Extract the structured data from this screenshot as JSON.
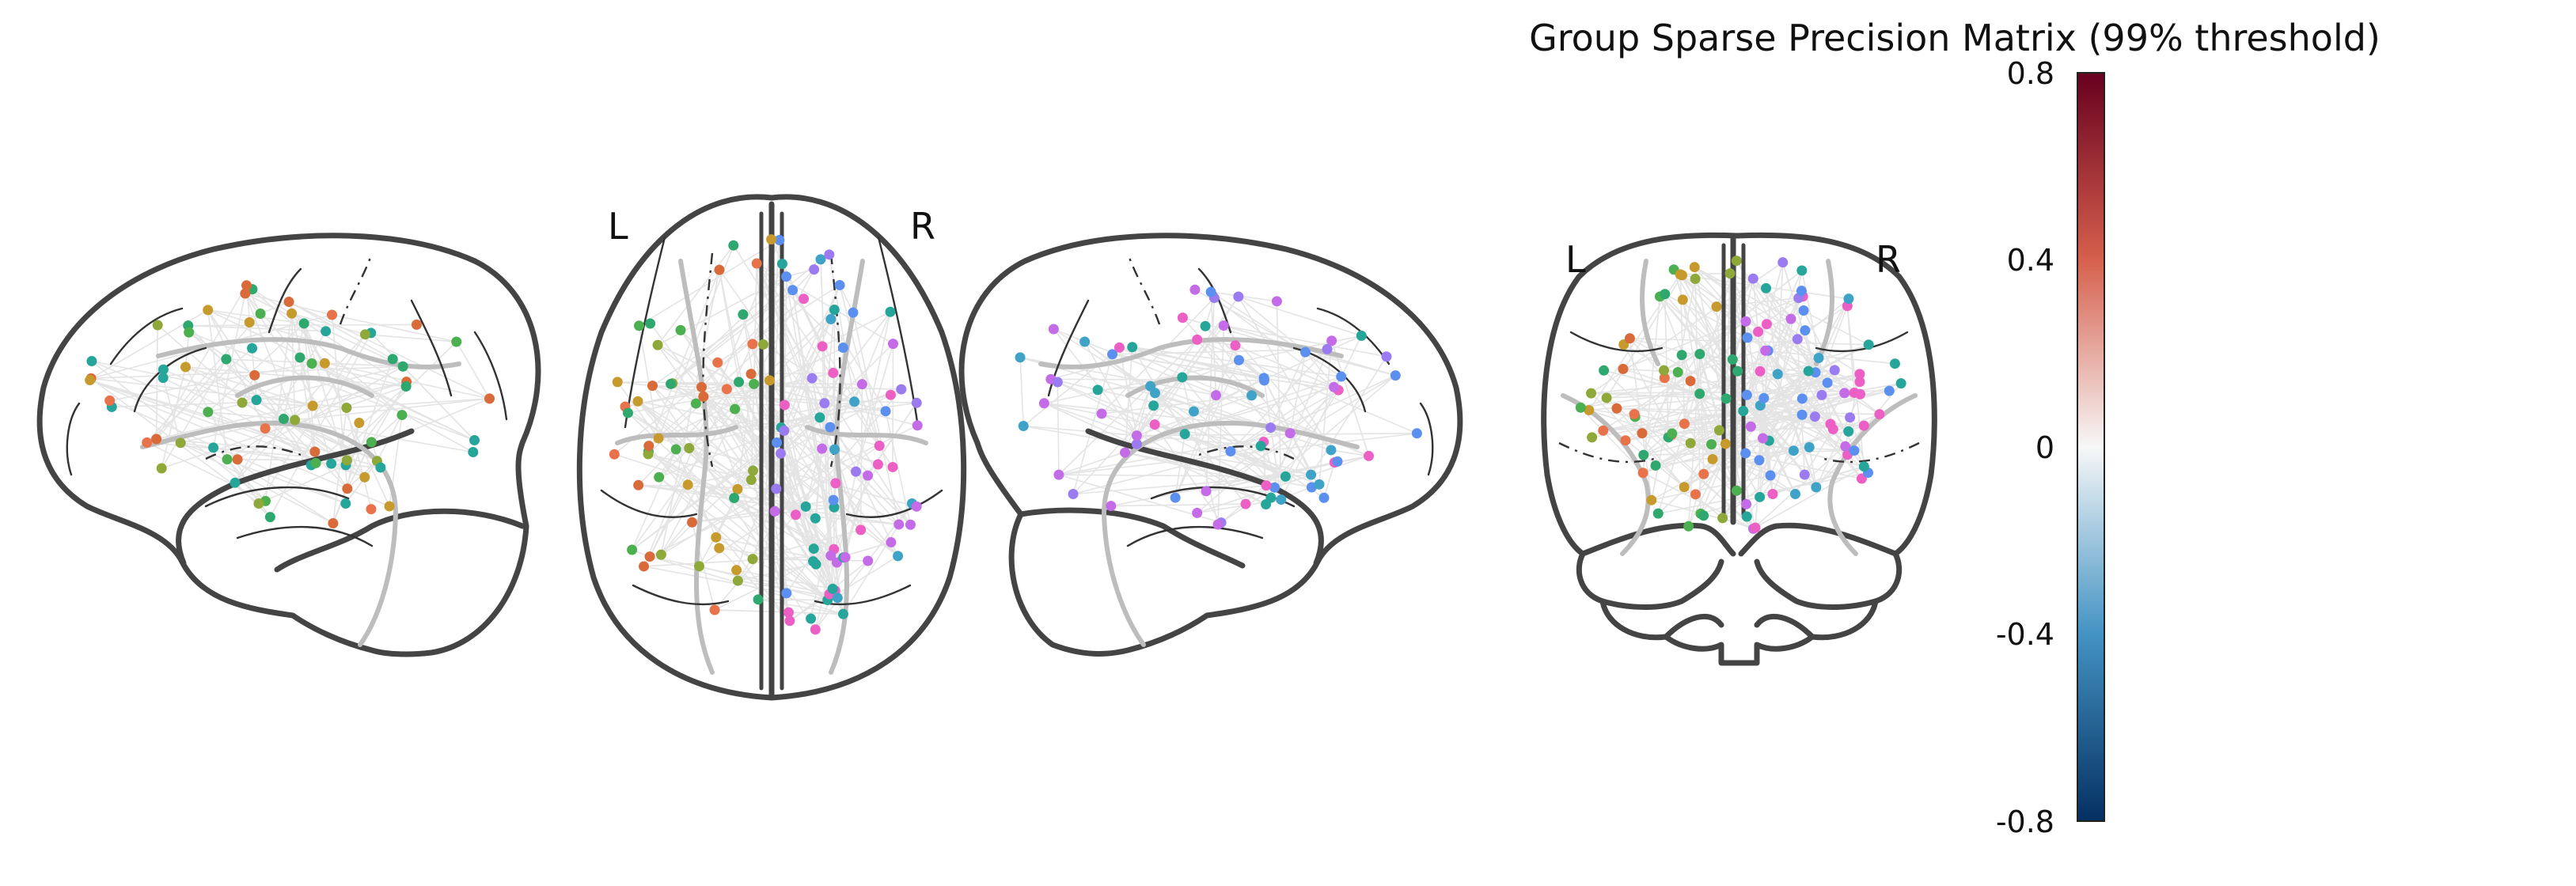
{
  "title": "Group Sparse Precision Matrix (99% threshold)",
  "views": [
    {
      "name": "sagittal-left",
      "labels": []
    },
    {
      "name": "axial",
      "labels": [
        "L",
        "R"
      ]
    },
    {
      "name": "sagittal-right",
      "labels": []
    },
    {
      "name": "coronal",
      "labels": [
        "L",
        "R"
      ]
    }
  ],
  "colorbar": {
    "colormap": "RdBu_r",
    "min": -0.8,
    "max": 0.8,
    "ticks": [
      "0.8",
      "0.4",
      "0",
      "-0.4",
      "-0.8"
    ],
    "colors": {
      "top": "#67001f",
      "upper": "#d6604d",
      "mid": "#f7f7f7",
      "lower": "#4393c3",
      "bottom": "#053061"
    }
  },
  "node_palette": [
    "#e8734a",
    "#d96a3a",
    "#c79a2e",
    "#8fa83a",
    "#4caf50",
    "#2ea86e",
    "#26a69a",
    "#3fa3c8",
    "#5b8ff0",
    "#9b7cf0",
    "#c46be8",
    "#ec5fc4"
  ],
  "edge_color": "#e4e4e4"
}
